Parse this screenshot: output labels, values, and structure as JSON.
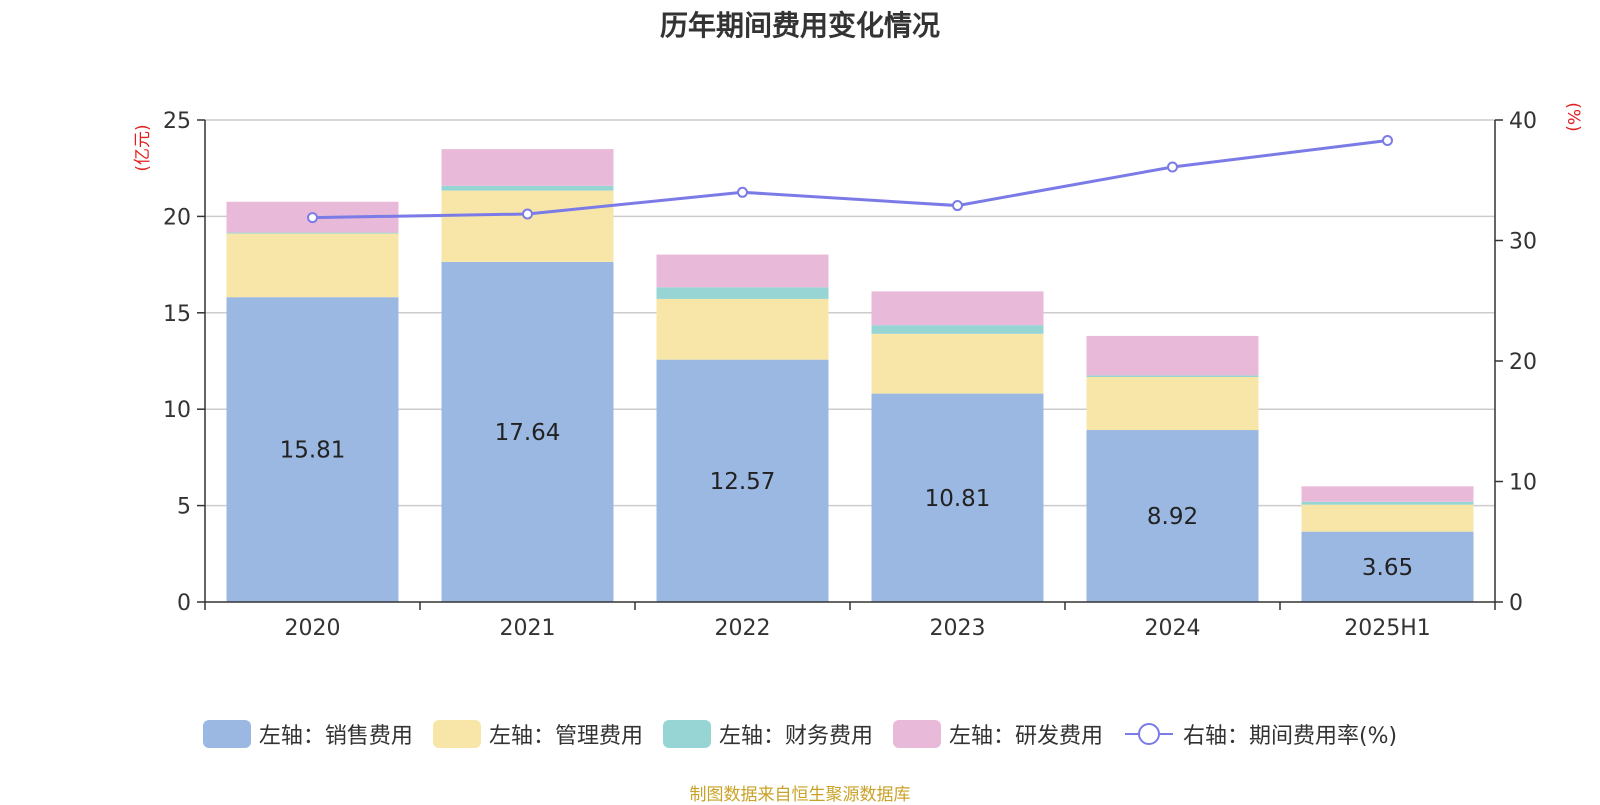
{
  "colors": {
    "sales": "#9bb8e2",
    "admin": "#f8e6a8",
    "finance": "#97d5d4",
    "rnd": "#e8b9d9",
    "rate": "#7b7be8",
    "axis_unit": "#e02020",
    "source": "#c9a227",
    "grid": "#cccccc",
    "axis": "#333333"
  },
  "chart_data": {
    "type": "bar",
    "title": "历年期间费用变化情况",
    "categories": [
      "2020",
      "2021",
      "2022",
      "2023",
      "2024",
      "2025H1"
    ],
    "left_axis": {
      "unit": "(亿元)",
      "ylim": [
        0,
        25
      ],
      "ticks": [
        "0",
        "5",
        "10",
        "15",
        "20",
        "25"
      ]
    },
    "right_axis": {
      "unit": "(%)",
      "ylim": [
        0,
        40
      ],
      "ticks": [
        "0",
        "10",
        "20",
        "30",
        "40"
      ]
    },
    "stacked": true,
    "series": [
      {
        "key": "sales",
        "name": "左轴：销售费用",
        "axis": "left",
        "type": "bar",
        "values": [
          15.81,
          17.64,
          12.57,
          10.81,
          8.92,
          3.65
        ],
        "labels": [
          "15.81",
          "17.64",
          "12.57",
          "10.81",
          "8.92",
          "3.65"
        ]
      },
      {
        "key": "admin",
        "name": "左轴：管理费用",
        "axis": "left",
        "type": "bar",
        "values": [
          3.3,
          3.7,
          3.15,
          3.1,
          2.75,
          1.4
        ]
      },
      {
        "key": "finance",
        "name": "左轴：财务费用",
        "axis": "left",
        "type": "bar",
        "values": [
          0.05,
          0.25,
          0.6,
          0.45,
          0.08,
          0.15
        ]
      },
      {
        "key": "rnd",
        "name": "左轴：研发费用",
        "axis": "left",
        "type": "bar",
        "values": [
          1.6,
          1.9,
          1.7,
          1.75,
          2.05,
          0.8
        ]
      },
      {
        "key": "rate",
        "name": "右轴：期间费用率(%)",
        "axis": "right",
        "type": "line",
        "values": [
          31.9,
          32.2,
          34.0,
          32.9,
          36.1,
          38.3
        ]
      }
    ],
    "grid": true,
    "legend_position": "bottom"
  },
  "source_note": "制图数据来自恒生聚源数据库"
}
